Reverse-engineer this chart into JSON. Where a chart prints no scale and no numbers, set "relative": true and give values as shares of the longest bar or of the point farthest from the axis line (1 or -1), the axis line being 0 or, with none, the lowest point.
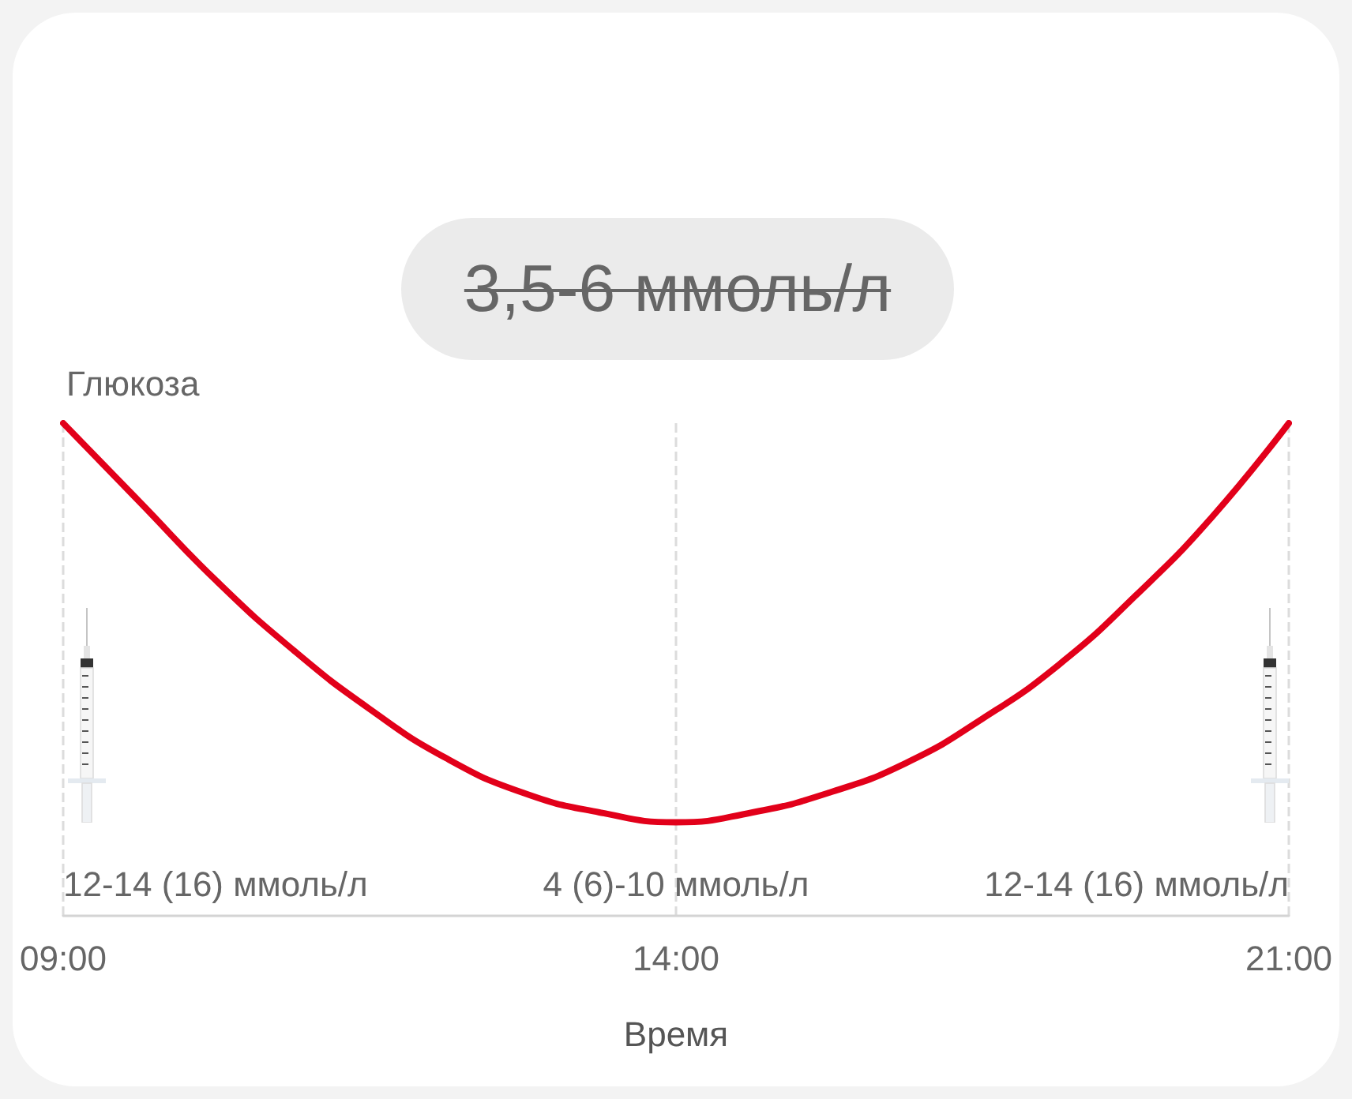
{
  "chart_data": {
    "type": "line",
    "title": "3,5-6 ммоль/л",
    "xlabel": "Время",
    "ylabel": "Глюкоза",
    "categories": [
      "09:00",
      null,
      null,
      null,
      null,
      null,
      null,
      null,
      "14:00",
      null,
      null,
      null,
      null,
      null,
      null,
      null,
      "21:00"
    ],
    "series": [
      {
        "color": "#e2001a",
        "values": [
          1,
          0.84,
          0.68,
          0.54,
          0.42,
          0.32,
          0.25,
          0.21,
          0.19,
          0.21,
          0.25,
          0.31,
          0.4,
          0.51,
          0.65,
          0.81,
          1
        ]
      }
    ],
    "relative": true,
    "annotations": [
      "12-14 (16) ммоль/л",
      "4 (6)-10 ммоль/л",
      "12-14 (16) ммоль/л"
    ],
    "grid": "x",
    "marker": "none",
    "line_style": "solid"
  }
}
